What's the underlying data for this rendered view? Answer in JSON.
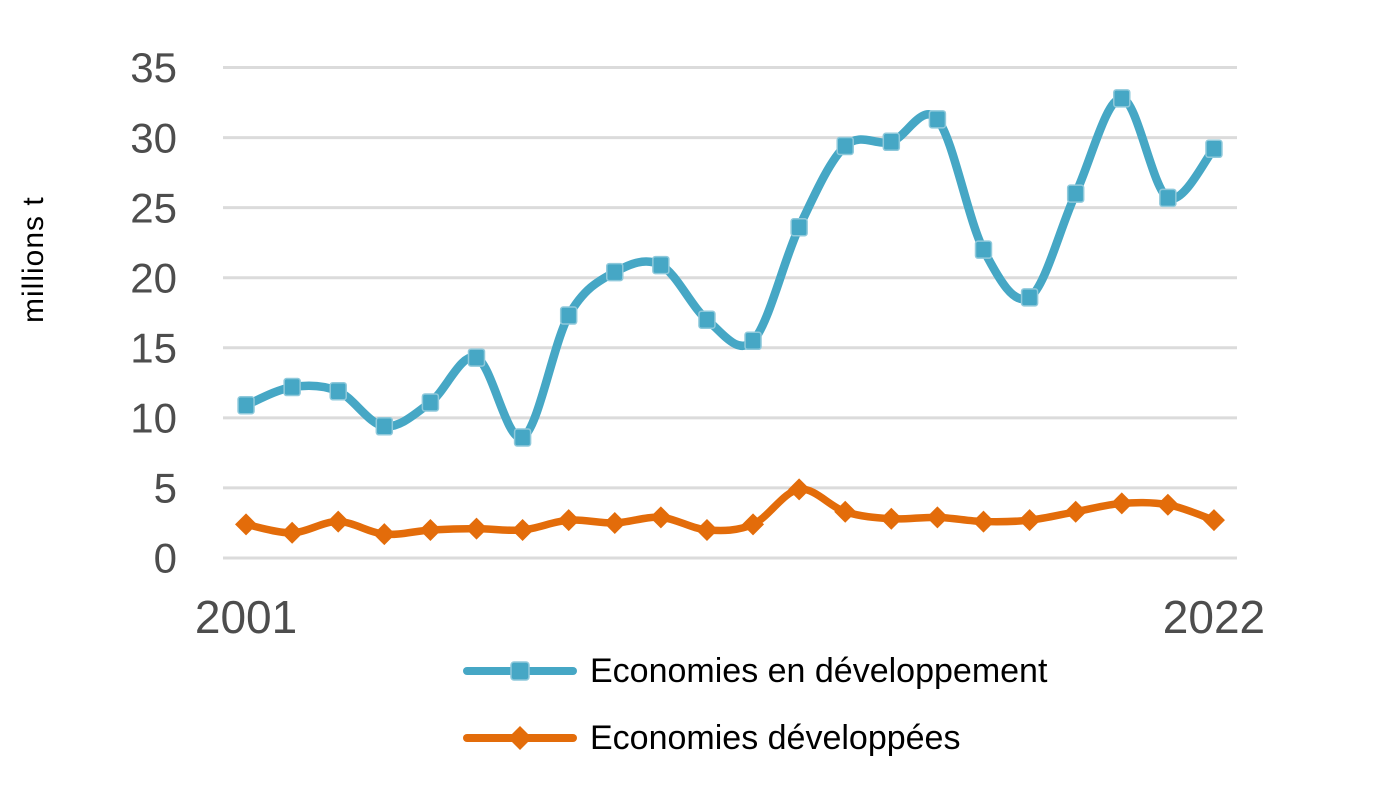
{
  "chart_data": {
    "type": "line",
    "title": "",
    "ylabel": "millions t",
    "xlabel": "",
    "categories": [
      2001,
      2002,
      2003,
      2004,
      2005,
      2006,
      2007,
      2008,
      2009,
      2010,
      2011,
      2012,
      2013,
      2014,
      2015,
      2016,
      2017,
      2018,
      2019,
      2020,
      2021,
      2022
    ],
    "x_shown_ticks": [
      "2001",
      "2022"
    ],
    "ylim": [
      0,
      35
    ],
    "yticks": [
      35,
      30,
      25,
      20,
      15,
      10,
      5,
      0
    ],
    "grid": "horizontal gridlines only, no axis lines",
    "legend_position": "bottom-center",
    "series": [
      {
        "name": "Economies en développement",
        "color": "#46A7C5",
        "marker": "square",
        "line_style": "smooth",
        "values": [
          10.9,
          12.2,
          11.9,
          9.4,
          11.1,
          14.3,
          8.6,
          17.3,
          20.4,
          20.9,
          17.0,
          15.5,
          23.6,
          29.4,
          29.7,
          31.3,
          22.0,
          18.6,
          26.0,
          32.8,
          25.7,
          29.2
        ]
      },
      {
        "name": "Economies développées",
        "color": "#E36C0A",
        "marker": "diamond",
        "line_style": "smooth",
        "values": [
          2.4,
          1.8,
          2.6,
          1.7,
          2.0,
          2.1,
          2.0,
          2.7,
          2.5,
          2.9,
          2.0,
          2.4,
          4.9,
          3.3,
          2.8,
          2.9,
          2.6,
          2.7,
          3.3,
          3.9,
          3.8,
          2.7
        ]
      }
    ]
  },
  "styles": {
    "grid_color": "#DBDBDB",
    "tick_label_color": "#4D4D4D",
    "text_color": "#000000",
    "background": "#FFFFFF",
    "marker_edge_blue": "#8FC9DB"
  }
}
